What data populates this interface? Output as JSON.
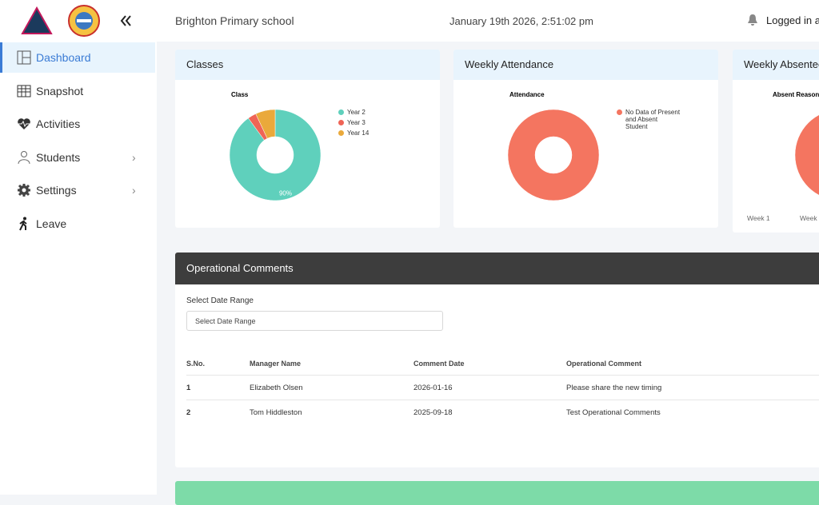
{
  "header": {
    "school": "Brighton Primary school",
    "datetime": "January 19th 2026, 2:51:02 pm",
    "user": "Logged in as"
  },
  "sidebar": {
    "items": [
      "Dashboard",
      "Snapshot",
      "Activities",
      "Students",
      "Settings",
      "Leave"
    ],
    "active": 0
  },
  "cards": [
    {
      "title": "Classes",
      "chart": {
        "type": "pie",
        "title": "Class",
        "categories": [
          "Year 2",
          "Year 3",
          "Year 14"
        ],
        "values": [
          90,
          3,
          7
        ],
        "value_labels": [
          "90%",
          null,
          null
        ],
        "colors": [
          "#5fd0bc",
          "#ef6456",
          "#eaa93b"
        ]
      }
    },
    {
      "title": "Weekly Attendance",
      "chart": {
        "type": "pie",
        "title": "Attendance",
        "categories": [
          "No Data of Present and Absent Student"
        ],
        "values": [
          100
        ],
        "colors": [
          "#f47560"
        ]
      }
    },
    {
      "title": "Weekly Absentee",
      "chart": {
        "type": "pie",
        "title": "Absent Reason",
        "x_labels": [
          "Week 1",
          "Week"
        ],
        "categories": [
          null
        ],
        "values": [
          100
        ],
        "colors": [
          "#f47560"
        ]
      }
    }
  ],
  "comments": {
    "title": "Operational Comments",
    "date_label": "Select Date Range",
    "date_placeholder": "Select Date Range",
    "table": {
      "columns": [
        "S.No.",
        "Manager Name",
        "Comment Date",
        "Operational Comment"
      ],
      "rows": [
        [
          "1",
          "Elizabeth Olsen",
          "2026-01-16",
          "Please share the new timing"
        ],
        [
          "2",
          "Tom Hiddleston",
          "2025-09-18",
          "Test Operational Comments"
        ]
      ]
    }
  }
}
